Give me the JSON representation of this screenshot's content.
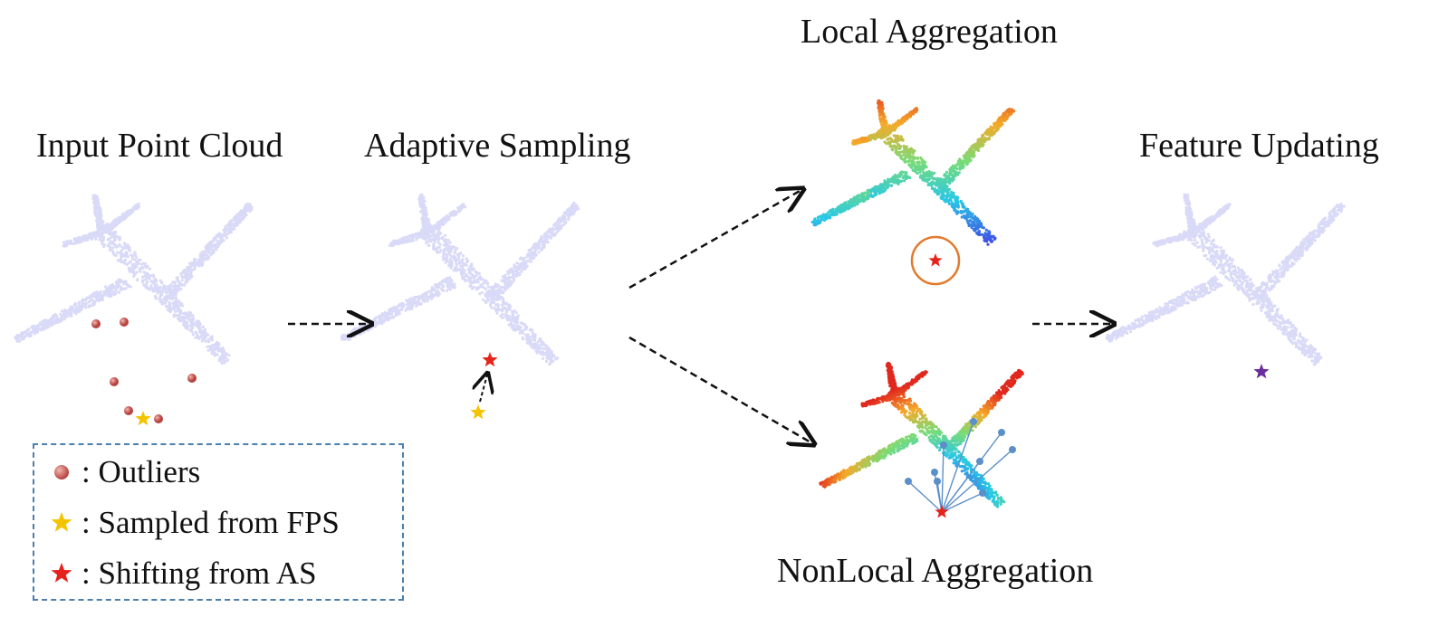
{
  "labels": {
    "input": "Input Point Cloud",
    "adaptive": "Adaptive Sampling",
    "local": "Local Aggregation",
    "feature": "Feature Updating",
    "nonlocal": "NonLocal Aggregation"
  },
  "legend": {
    "items": [
      {
        "symbol": "outlier-ball",
        "text": ": Outliers"
      },
      {
        "symbol": "yellow-star",
        "text": ": Sampled from FPS"
      },
      {
        "symbol": "red-star",
        "text": ": Shifting from AS"
      }
    ]
  },
  "colors": {
    "pale_cloud": "#d9daf7",
    "outlier": "#c05a55",
    "fps_star": "#f4c400",
    "as_star": "#e5231b",
    "feature_star": "#6a2d9c",
    "highlight_circle": "#e27a2b",
    "nonlocal_links": "#5b8fc9",
    "legend_border": "#4a7fae",
    "arrow": "#111111"
  }
}
